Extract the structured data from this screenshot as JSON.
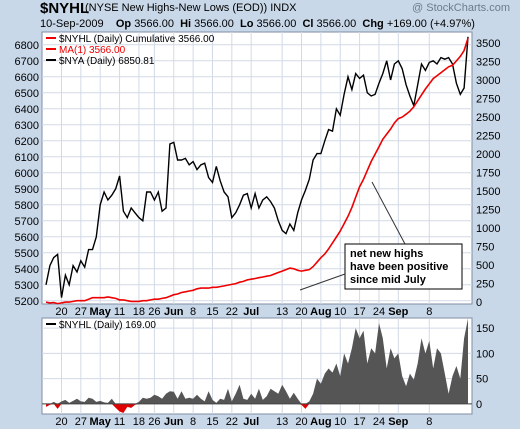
{
  "header": {
    "symbol": "$NYHL",
    "description": "(NYSE New Highs-New Lows (EOD)) INDX",
    "copyright": "@ StockCharts.com",
    "date": "10-Sep-2009",
    "open_label": "Op",
    "open": "3566.00",
    "high_label": "Hi",
    "high": "3566.00",
    "low_label": "Lo",
    "low": "3566.00",
    "close_label": "Cl",
    "close": "3566.00",
    "chg_label": "Chg",
    "chg": "+169.00 (+4.97%)"
  },
  "colors": {
    "background": "#c9d8e9",
    "panel": "#ffffff",
    "grid": "#d2dae6",
    "cumulative_line": "#ee0000",
    "nya_line": "#000000",
    "area_positive": "#555555",
    "area_negative": "#e00000"
  },
  "chart_data": [
    {
      "type": "line",
      "legend": [
        "$NYHL (Daily) Cumulative 3566.00",
        "MA(1) 3566.00",
        "$NYA (Daily) 6850.81"
      ],
      "legend_placement": "top-left",
      "grid": true,
      "x_tick_labels": [
        "20",
        "27",
        "May",
        "11",
        "18",
        "26",
        "Jun",
        "8",
        "15",
        "22",
        "Jul",
        "13",
        "20",
        "Aug",
        "10",
        "17",
        "24",
        "Sep",
        "8"
      ],
      "y_left_ticks": [
        5200,
        5300,
        5400,
        5500,
        5600,
        5700,
        5800,
        5900,
        6000,
        6100,
        6200,
        6300,
        6400,
        6500,
        6600,
        6700,
        6800
      ],
      "y_left_lim": [
        5180,
        6880
      ],
      "y_right_ticks": [
        0,
        250,
        500,
        750,
        1000,
        1250,
        1500,
        1750,
        2000,
        2250,
        2500,
        2750,
        3000,
        3250,
        3500
      ],
      "y_right_lim": [
        -25,
        3650
      ],
      "annotation": [
        "net new highs",
        "have been positive",
        "since mid July"
      ],
      "series": [
        {
          "name": "$NYHL (Daily) Cumulative",
          "axis": "right",
          "values": [
            0,
            -10,
            -5,
            -20,
            -10,
            0,
            0,
            10,
            20,
            20,
            20,
            40,
            60,
            60,
            60,
            60,
            70,
            60,
            50,
            30,
            30,
            20,
            10,
            10,
            10,
            20,
            20,
            30,
            40,
            40,
            50,
            60,
            80,
            100,
            110,
            130,
            140,
            150,
            160,
            180,
            190,
            190,
            190,
            200,
            200,
            210,
            220,
            230,
            240,
            250,
            270,
            280,
            300,
            310,
            320,
            330,
            340,
            350,
            360,
            380,
            400,
            420,
            440,
            460,
            450,
            430,
            420,
            430,
            440,
            480,
            540,
            600,
            650,
            720,
            800,
            880,
            960,
            1060,
            1160,
            1280,
            1420,
            1560,
            1660,
            1780,
            1900,
            2000,
            2100,
            2200,
            2270,
            2340,
            2420,
            2480,
            2500,
            2540,
            2580,
            2640,
            2720,
            2800,
            2880,
            2950,
            3020,
            3060,
            3100,
            3140,
            3180,
            3200,
            3260,
            3320,
            3400,
            3566
          ]
        },
        {
          "name": "$NYA (Daily)",
          "axis": "left",
          "values": [
            5300,
            5420,
            5470,
            5490,
            5220,
            5360,
            5300,
            5420,
            5380,
            5450,
            5410,
            5520,
            5520,
            5600,
            5800,
            5880,
            5830,
            5860,
            5900,
            5980,
            5760,
            5720,
            5780,
            5750,
            5720,
            5700,
            5880,
            5880,
            5830,
            5880,
            5760,
            5780,
            6180,
            6190,
            6080,
            6080,
            6090,
            6050,
            6070,
            6020,
            6050,
            6060,
            5970,
            5940,
            6040,
            5950,
            5880,
            5850,
            5720,
            5750,
            5800,
            5860,
            5870,
            5780,
            5870,
            5780,
            5830,
            5850,
            5820,
            5780,
            5700,
            5640,
            5620,
            5680,
            5640,
            5750,
            5830,
            5890,
            5960,
            6080,
            6120,
            6120,
            6200,
            6270,
            6260,
            6400,
            6360,
            6490,
            6600,
            6520,
            6620,
            6590,
            6610,
            6500,
            6480,
            6490,
            6560,
            6620,
            6700,
            6580,
            6680,
            6700,
            6650,
            6550,
            6480,
            6420,
            6550,
            6680,
            6640,
            6690,
            6700,
            6680,
            6720,
            6710,
            6720,
            6680,
            6560,
            6490,
            6530,
            6850
          ]
        }
      ]
    },
    {
      "type": "area",
      "legend": [
        "$NYHL (Daily) 169.00"
      ],
      "legend_placement": "top-left",
      "grid": true,
      "x_tick_labels": [
        "20",
        "27",
        "May",
        "11",
        "18",
        "26",
        "Jun",
        "8",
        "15",
        "22",
        "Jul",
        "13",
        "20",
        "Aug",
        "10",
        "17",
        "24",
        "Sep",
        "8"
      ],
      "y_right_ticks": [
        0,
        50,
        100,
        150
      ],
      "y_right_lim": [
        -20,
        170
      ],
      "series": [
        {
          "name": "$NYHL (Daily)",
          "values": [
            -6,
            -2,
            4,
            -10,
            5,
            8,
            2,
            6,
            10,
            5,
            4,
            12,
            10,
            4,
            6,
            3,
            2,
            10,
            -8,
            -15,
            -18,
            -6,
            -8,
            -2,
            4,
            12,
            10,
            12,
            18,
            15,
            10,
            20,
            25,
            24,
            10,
            25,
            10,
            12,
            10,
            18,
            10,
            5,
            25,
            8,
            2,
            10,
            8,
            30,
            5,
            20,
            38,
            10,
            8,
            20,
            10,
            30,
            8,
            15,
            30,
            25,
            20,
            38,
            25,
            10,
            22,
            10,
            -2,
            -10,
            5,
            20,
            50,
            40,
            60,
            70,
            62,
            80,
            55,
            100,
            80,
            110,
            150,
            130,
            145,
            80,
            110,
            100,
            160,
            130,
            70,
            110,
            90,
            100,
            55,
            35,
            60,
            48,
            80,
            130,
            100,
            125,
            70,
            110,
            100,
            60,
            20,
            55,
            75,
            50,
            130,
            169
          ]
        }
      ]
    }
  ]
}
